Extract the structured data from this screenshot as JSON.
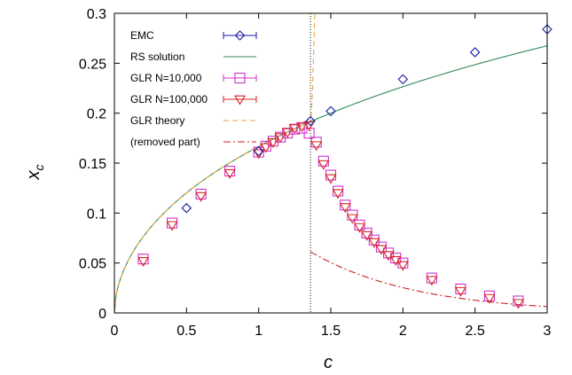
{
  "chart_data": {
    "type": "scatter",
    "xlabel": "c",
    "ylabel": "x",
    "ylabel_sub": "c",
    "xlim": [
      0,
      3
    ],
    "ylim": [
      0,
      0.3
    ],
    "xticks": [
      "0",
      "0.5",
      "1",
      "1.5",
      "2",
      "2.5",
      "3"
    ],
    "xtick_values": [
      0,
      0.5,
      1,
      1.5,
      2,
      2.5,
      3
    ],
    "yticks": [
      "0",
      "0.05",
      "0.1",
      "0.15",
      "0.2",
      "0.25",
      "0.3"
    ],
    "ytick_values": [
      0,
      0.05,
      0.1,
      0.15,
      0.2,
      0.25,
      0.3
    ],
    "legend_position": "top-left",
    "vertical_line_x": 1.3591,
    "series": [
      {
        "name": "EMC",
        "kind": "points",
        "marker": "diamond",
        "color": "#1a1aa6",
        "x": [
          0.5,
          1.0,
          1.359,
          1.5,
          2.0,
          2.5,
          3.0
        ],
        "y": [
          0.105,
          0.162,
          0.192,
          0.202,
          0.234,
          0.261,
          0.284
        ]
      },
      {
        "name": "RS solution",
        "kind": "curve",
        "function": "rs",
        "color": "#2e8b57",
        "domain": [
          0,
          3
        ]
      },
      {
        "name": "GLR   N=10,000",
        "kind": "points",
        "marker": "square",
        "color": "#cc33cc",
        "x": [
          0.2,
          0.4,
          0.6,
          0.8,
          1.0,
          1.05,
          1.1,
          1.15,
          1.2,
          1.25,
          1.3,
          1.35,
          1.4,
          1.45,
          1.5,
          1.55,
          1.6,
          1.65,
          1.7,
          1.75,
          1.8,
          1.85,
          1.9,
          1.95,
          2.0,
          2.2,
          2.4,
          2.6,
          2.8
        ],
        "y": [
          0.054,
          0.09,
          0.119,
          0.142,
          0.161,
          0.167,
          0.172,
          0.176,
          0.18,
          0.184,
          0.185,
          0.18,
          0.171,
          0.152,
          0.138,
          0.122,
          0.108,
          0.098,
          0.088,
          0.08,
          0.073,
          0.066,
          0.06,
          0.055,
          0.05,
          0.035,
          0.024,
          0.017,
          0.012
        ]
      },
      {
        "name": "GLR N=100,000",
        "kind": "points",
        "marker": "triangle-down",
        "color": "#dd2222",
        "x": [
          0.2,
          0.4,
          0.6,
          0.8,
          1.0,
          1.05,
          1.1,
          1.15,
          1.2,
          1.25,
          1.3,
          1.35,
          1.4,
          1.45,
          1.5,
          1.55,
          1.6,
          1.65,
          1.7,
          1.75,
          1.8,
          1.85,
          1.9,
          1.95,
          2.0,
          2.2,
          2.4,
          2.6,
          2.8
        ],
        "y": [
          0.052,
          0.088,
          0.117,
          0.14,
          0.16,
          0.166,
          0.171,
          0.176,
          0.181,
          0.185,
          0.187,
          0.188,
          0.168,
          0.149,
          0.135,
          0.12,
          0.106,
          0.095,
          0.086,
          0.078,
          0.071,
          0.064,
          0.058,
          0.053,
          0.048,
          0.033,
          0.022,
          0.015,
          0.01
        ]
      },
      {
        "name": "GLR     theory",
        "kind": "curve",
        "function": "glr_theory",
        "color": "#e8a33a",
        "dash": "6,4",
        "domain": [
          0,
          1.44
        ]
      },
      {
        "name": "(removed part)",
        "kind": "curve",
        "function": "removed",
        "color": "#cc2222",
        "dash": "8,3,2,3",
        "domain": [
          1.36,
          3
        ]
      }
    ]
  }
}
